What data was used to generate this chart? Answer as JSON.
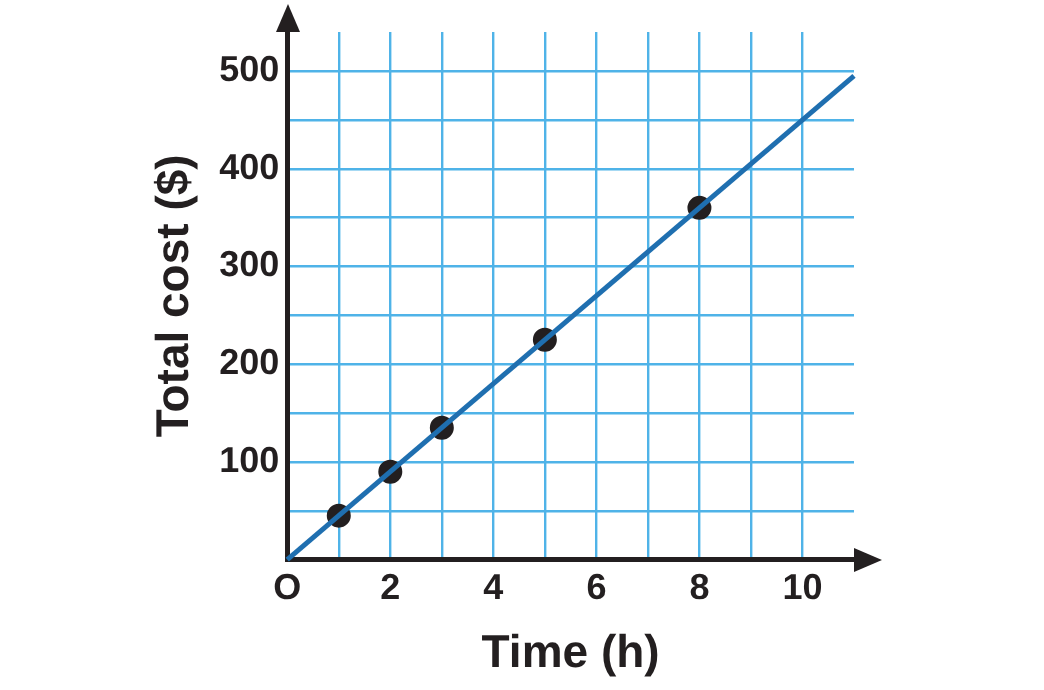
{
  "chart_data": {
    "type": "line",
    "xlabel": "Time (h)",
    "ylabel": "Total cost ($)",
    "xlim": [
      0,
      11
    ],
    "ylim": [
      0,
      540
    ],
    "xticks": [
      {
        "value": 0,
        "label": "O"
      },
      {
        "value": 1,
        "label": null
      },
      2,
      {
        "value": 3,
        "label": null
      },
      4,
      {
        "value": 5,
        "label": null
      },
      6,
      {
        "value": 7,
        "label": null
      },
      8,
      {
        "value": 9,
        "label": null
      },
      10
    ],
    "yticks": [
      {
        "value": 0,
        "label": null
      },
      {
        "value": 50,
        "label": null
      },
      100,
      {
        "value": 150,
        "label": null
      },
      200,
      {
        "value": 250,
        "label": null
      },
      300,
      {
        "value": 350,
        "label": null
      },
      400,
      {
        "value": 450,
        "label": null
      },
      500
    ],
    "grid": true,
    "legend": false,
    "series": [
      {
        "color": "#1f6fb0",
        "x": [
          0,
          11
        ],
        "values": [
          0,
          495
        ],
        "marker": "none"
      },
      {
        "type": "scatter",
        "color": "#231f20",
        "x": [
          1,
          2,
          3,
          5,
          8
        ],
        "values": [
          45,
          90,
          135,
          225,
          360
        ],
        "marker": "circle"
      }
    ]
  }
}
